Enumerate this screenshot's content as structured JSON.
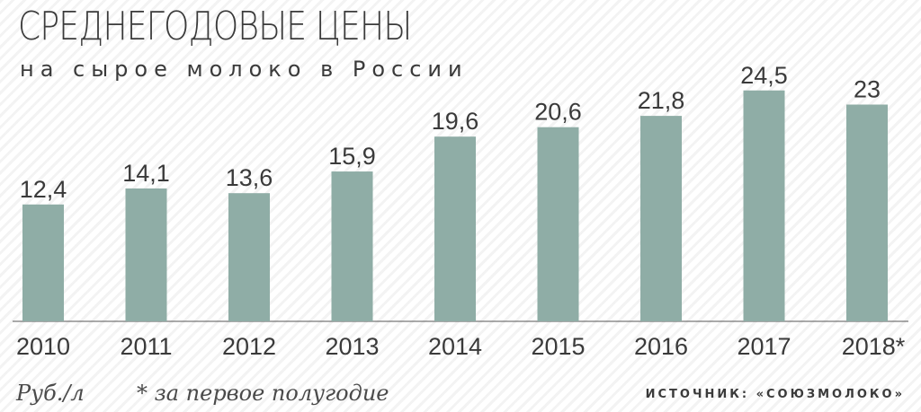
{
  "colors": {
    "bar": "#8fada6",
    "text": "#3a3a3a",
    "axis": "#555555"
  },
  "labels": {
    "unit": "Руб./л",
    "footnote": "* за первое полугодие",
    "source": "ИСТОЧНИК: «СОЮЗМОЛОКО»"
  },
  "chart_data": {
    "type": "bar",
    "title": "СРЕДНЕГОДОВЫЕ ЦЕНЫ",
    "subtitle": "на сырое молоко в России",
    "categories": [
      "2010",
      "2011",
      "2012",
      "2013",
      "2014",
      "2015",
      "2016",
      "2017",
      "2018*"
    ],
    "values": [
      12.4,
      14.1,
      13.6,
      15.9,
      19.6,
      20.6,
      21.8,
      24.5,
      23
    ],
    "value_labels": [
      "12,4",
      "14,1",
      "13,6",
      "15,9",
      "19,6",
      "20,6",
      "21,8",
      "24,5",
      "23"
    ],
    "xlabel": "",
    "ylabel": "Руб./л",
    "grid": false,
    "legend": "none"
  }
}
